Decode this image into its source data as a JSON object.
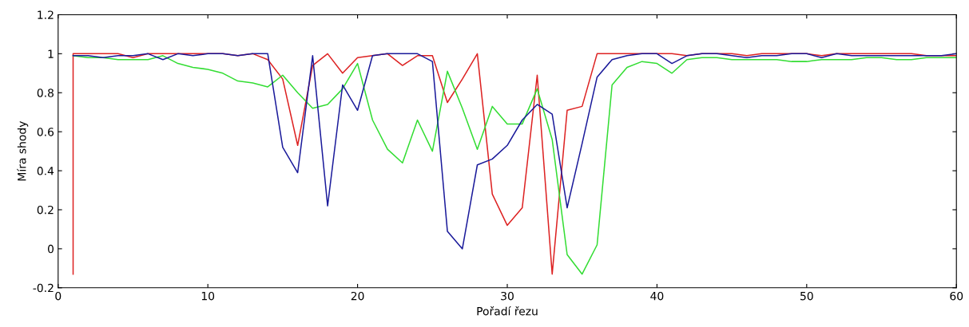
{
  "chart_data": {
    "type": "line",
    "xlabel": "Pořadí řezu",
    "ylabel": "Míra shody",
    "xlim": [
      0,
      60
    ],
    "ylim": [
      -0.2,
      1.2
    ],
    "xticks": [
      0,
      10,
      20,
      30,
      40,
      50,
      60
    ],
    "yticks": [
      {
        "value": -0.2,
        "label": "-0.2"
      },
      0,
      0.2,
      0.4,
      0.6,
      0.8,
      1,
      1.2
    ],
    "grid": false,
    "line_style": "solid",
    "marker": "none",
    "series": [
      {
        "color": "#dd2222",
        "x": [
          1,
          1,
          2,
          3,
          4,
          5,
          6,
          7,
          8,
          9,
          10,
          11,
          12,
          13,
          14,
          15,
          16,
          17,
          18,
          19,
          20,
          21,
          22,
          23,
          24,
          25,
          26,
          27,
          28,
          29,
          30,
          31,
          32,
          33,
          34,
          35,
          36,
          37,
          38,
          39,
          40,
          41,
          42,
          43,
          44,
          45,
          46,
          47,
          48,
          49,
          50,
          51,
          52,
          53,
          54,
          55,
          56,
          57,
          58,
          59,
          60
        ],
        "values": [
          -0.13,
          1,
          1,
          1,
          1,
          0.98,
          1,
          1,
          1,
          1,
          1,
          1,
          0.99,
          1,
          0.97,
          0.87,
          0.53,
          0.94,
          1,
          0.9,
          0.98,
          0.99,
          1,
          0.94,
          0.99,
          0.99,
          0.75,
          0.87,
          1,
          0.28,
          0.12,
          0.21,
          0.89,
          -0.13,
          0.71,
          0.73,
          1,
          1,
          1,
          1,
          1,
          1,
          0.99,
          1,
          1,
          1,
          0.99,
          1,
          1,
          1,
          1,
          0.99,
          1,
          1,
          1,
          1,
          1,
          1,
          0.99,
          0.99,
          0.99
        ]
      },
      {
        "color": "#33dd33",
        "x": [
          1,
          2,
          3,
          4,
          5,
          6,
          7,
          8,
          9,
          10,
          11,
          12,
          13,
          14,
          15,
          16,
          17,
          18,
          19,
          20,
          21,
          22,
          23,
          24,
          25,
          26,
          27,
          28,
          29,
          30,
          31,
          32,
          33,
          34,
          35,
          36,
          37,
          38,
          39,
          40,
          41,
          42,
          43,
          44,
          45,
          46,
          47,
          48,
          49,
          50,
          51,
          52,
          53,
          54,
          55,
          56,
          57,
          58,
          59,
          60
        ],
        "values": [
          0.99,
          0.98,
          0.98,
          0.97,
          0.97,
          0.97,
          0.99,
          0.95,
          0.93,
          0.92,
          0.9,
          0.86,
          0.85,
          0.83,
          0.89,
          0.8,
          0.72,
          0.74,
          0.82,
          0.95,
          0.66,
          0.51,
          0.44,
          0.66,
          0.5,
          0.91,
          0.72,
          0.51,
          0.73,
          0.64,
          0.64,
          0.82,
          0.56,
          -0.03,
          -0.13,
          0.02,
          0.84,
          0.93,
          0.96,
          0.95,
          0.9,
          0.97,
          0.98,
          0.98,
          0.97,
          0.97,
          0.97,
          0.97,
          0.96,
          0.96,
          0.97,
          0.97,
          0.97,
          0.98,
          0.98,
          0.97,
          0.97,
          0.98,
          0.98,
          0.98
        ]
      },
      {
        "color": "#1a1a9a",
        "x": [
          1,
          2,
          3,
          4,
          5,
          6,
          7,
          8,
          9,
          10,
          11,
          12,
          13,
          14,
          15,
          16,
          17,
          18,
          19,
          20,
          21,
          22,
          23,
          24,
          25,
          26,
          27,
          28,
          29,
          30,
          31,
          32,
          33,
          34,
          35,
          36,
          37,
          38,
          39,
          40,
          41,
          42,
          43,
          44,
          45,
          46,
          47,
          48,
          49,
          50,
          51,
          52,
          53,
          54,
          55,
          56,
          57,
          58,
          59,
          60
        ],
        "values": [
          0.99,
          0.99,
          0.98,
          0.99,
          0.99,
          1,
          0.97,
          1,
          0.99,
          1,
          1,
          0.99,
          1,
          1,
          0.52,
          0.39,
          0.99,
          0.22,
          0.84,
          0.71,
          0.99,
          1,
          1,
          1,
          0.96,
          0.09,
          0,
          0.43,
          0.46,
          0.53,
          0.66,
          0.74,
          0.69,
          0.21,
          0.54,
          0.88,
          0.97,
          0.99,
          1,
          1,
          0.95,
          0.99,
          1,
          1,
          0.99,
          0.98,
          0.99,
          0.99,
          1,
          1,
          0.98,
          1,
          0.99,
          0.99,
          0.99,
          0.99,
          0.99,
          0.99,
          0.99,
          1
        ]
      }
    ]
  }
}
